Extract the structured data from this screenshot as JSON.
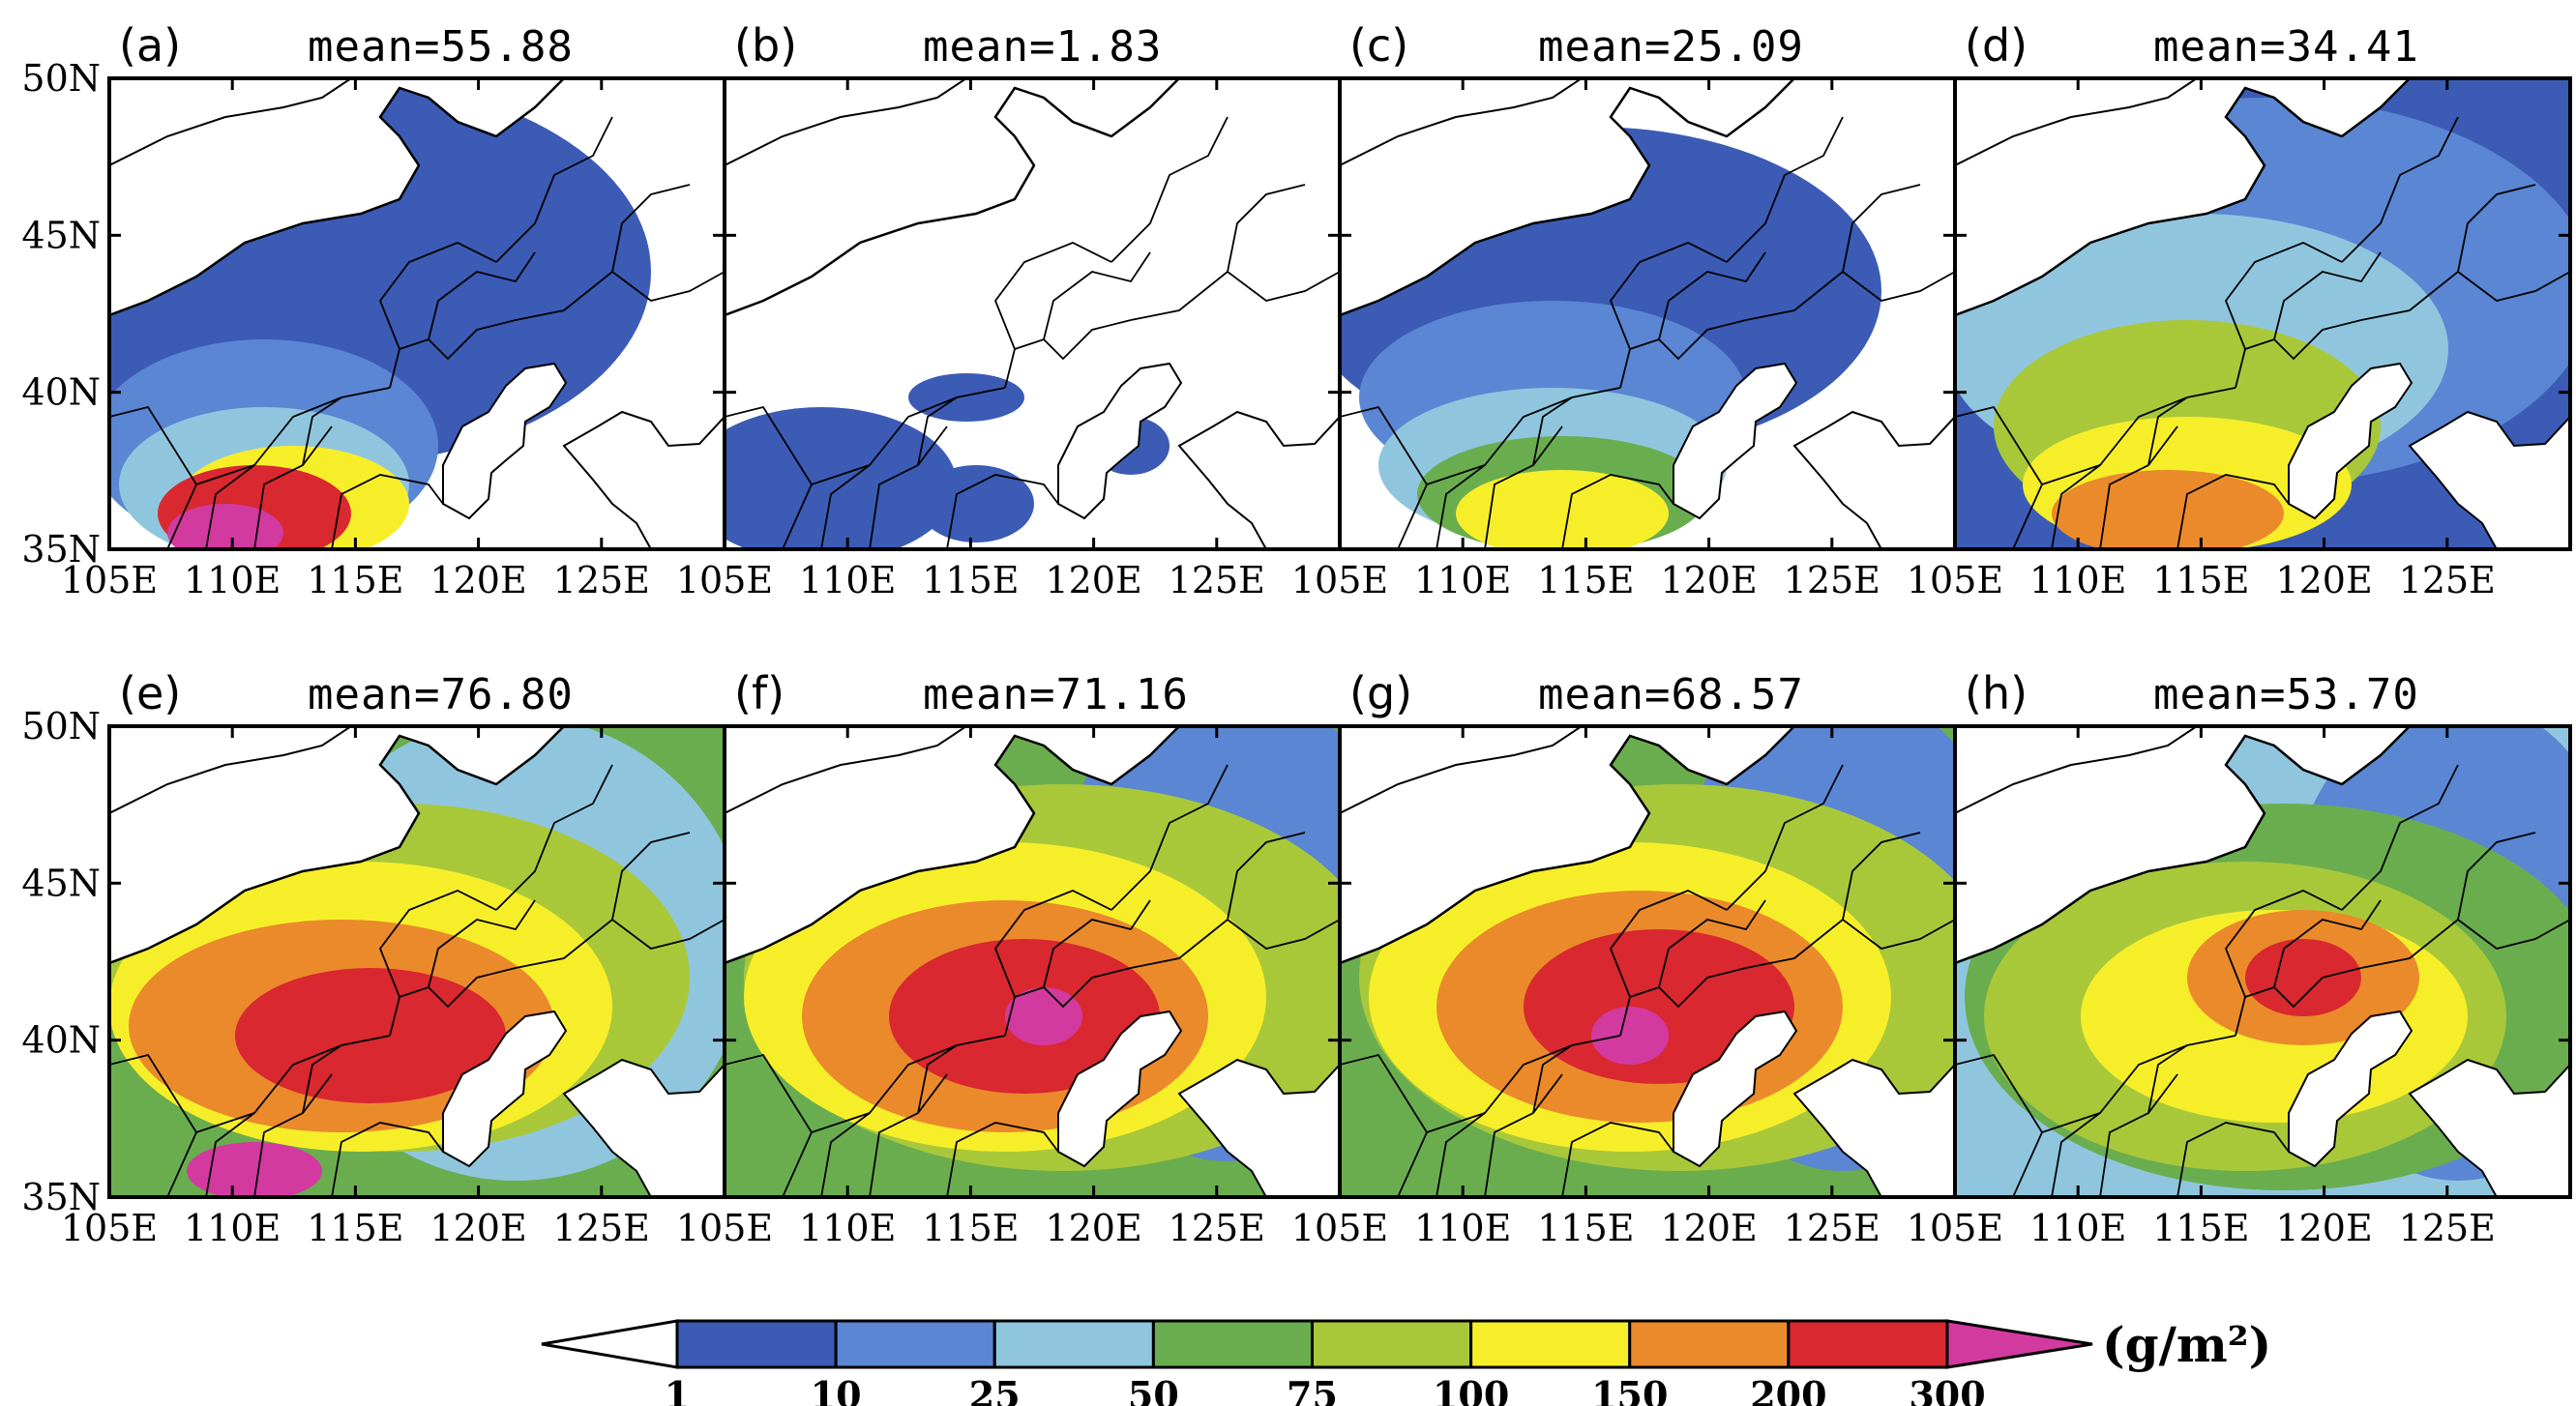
{
  "panels": [
    {
      "id": "a",
      "label": "(a)",
      "mean_text": "mean=55.88",
      "mean": 55.88
    },
    {
      "id": "b",
      "label": "(b)",
      "mean_text": "mean=1.83",
      "mean": 1.83
    },
    {
      "id": "c",
      "label": "(c)",
      "mean_text": "mean=25.09",
      "mean": 25.09
    },
    {
      "id": "d",
      "label": "(d)",
      "mean_text": "mean=34.41",
      "mean": 34.41
    },
    {
      "id": "e",
      "label": "(e)",
      "mean_text": "mean=76.80",
      "mean": 76.8
    },
    {
      "id": "f",
      "label": "(f)",
      "mean_text": "mean=71.16",
      "mean": 71.16
    },
    {
      "id": "g",
      "label": "(g)",
      "mean_text": "mean=68.57",
      "mean": 68.57
    },
    {
      "id": "h",
      "label": "(h)",
      "mean_text": "mean=53.70",
      "mean": 53.7
    }
  ],
  "lat_labels": [
    "50N",
    "45N",
    "40N",
    "35N"
  ],
  "lon_labels_full": [
    "105E",
    "110E",
    "115E",
    "120E",
    "125E"
  ],
  "lon_labels_last": [
    "105E",
    "110E",
    "115E",
    "120E",
    "125E"
  ],
  "colorbar": {
    "levels": [
      "1",
      "10",
      "25",
      "50",
      "75",
      "100",
      "150",
      "200",
      "300"
    ],
    "colors": [
      "#3b5bb5",
      "#5a86d3",
      "#8fc6de",
      "#6aad4f",
      "#a8c83a",
      "#f7ee2a",
      "#ea8a2b",
      "#d9282f",
      "#d23aa0"
    ],
    "unit": "(g/m²)"
  },
  "colors": {
    "ocean": "#ffffff",
    "border": "#000000",
    "low": "#3b5bb5"
  }
}
